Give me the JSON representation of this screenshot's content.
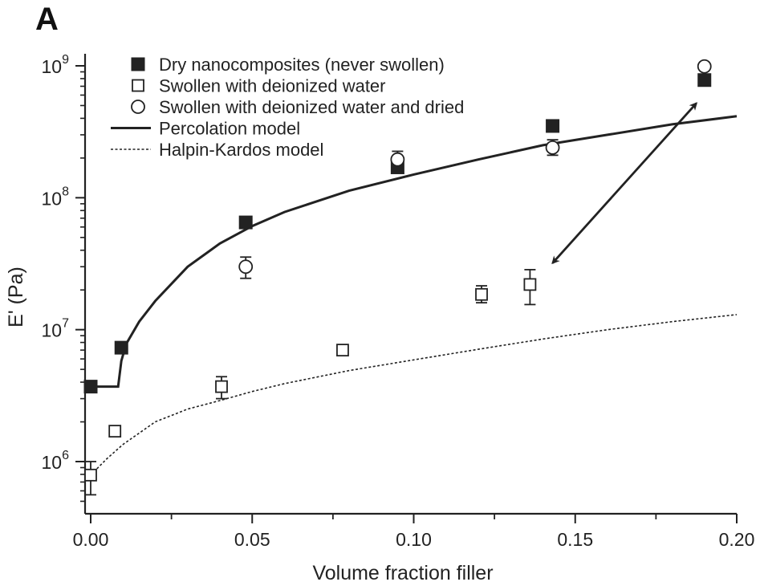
{
  "panel_label": "A",
  "chart_data": {
    "type": "scatter",
    "xlabel": "Volume fraction filler",
    "ylabel": "E' (Pa)",
    "xlim": [
      -0.002,
      0.2
    ],
    "ylim_log10": [
      5.6,
      9.1
    ],
    "yscale": "log",
    "x_ticks": [
      {
        "value": 0.0,
        "label": "0.00"
      },
      {
        "value": 0.05,
        "label": "0.05"
      },
      {
        "value": 0.1,
        "label": "0.10"
      },
      {
        "value": 0.15,
        "label": "0.15"
      },
      {
        "value": 0.2,
        "label": "0.20"
      }
    ],
    "x_minor_ticks": [
      0.025,
      0.075,
      0.125,
      0.175
    ],
    "y_ticks": [
      {
        "exp": 6,
        "base": "10",
        "sup": "6"
      },
      {
        "exp": 7,
        "base": "10",
        "sup": "7"
      },
      {
        "exp": 8,
        "base": "10",
        "sup": "8"
      },
      {
        "exp": 9,
        "base": "10",
        "sup": "9"
      }
    ],
    "legend_position": "top-left",
    "series": [
      {
        "name": "Dry nanocomposites (never swollen)",
        "marker": "filled-square",
        "points": [
          {
            "x": 0.0,
            "y": 3700000
          },
          {
            "x": 0.0095,
            "y": 7300000
          },
          {
            "x": 0.048,
            "y": 65000000
          },
          {
            "x": 0.095,
            "y": 170000000
          },
          {
            "x": 0.143,
            "y": 350000000
          },
          {
            "x": 0.19,
            "y": 780000000
          }
        ]
      },
      {
        "name": "Swollen with deionized water",
        "marker": "open-square",
        "points": [
          {
            "x": 0.0,
            "y": 790000,
            "err_lo": 560000,
            "err_hi": 1000000
          },
          {
            "x": 0.0075,
            "y": 1700000
          },
          {
            "x": 0.0405,
            "y": 3700000,
            "err_lo": 3000000,
            "err_hi": 4400000
          },
          {
            "x": 0.078,
            "y": 7000000
          },
          {
            "x": 0.121,
            "y": 18500000,
            "err_lo": 16000000,
            "err_hi": 21500000
          },
          {
            "x": 0.136,
            "y": 22000000,
            "err_lo": 15500000,
            "err_hi": 28500000
          }
        ]
      },
      {
        "name": "Swollen with deionized water and dried",
        "marker": "open-circle",
        "points": [
          {
            "x": 0.048,
            "y": 30000000,
            "err_lo": 24500000,
            "err_hi": 35500000
          },
          {
            "x": 0.095,
            "y": 195000000,
            "err_lo": 165000000,
            "err_hi": 225000000
          },
          {
            "x": 0.143,
            "y": 240000000,
            "err_lo": 210000000,
            "err_hi": 275000000
          },
          {
            "x": 0.19,
            "y": 990000000
          }
        ]
      },
      {
        "name": "Percolation model",
        "line": "solid",
        "points": [
          {
            "x": -0.002,
            "y": 3700000
          },
          {
            "x": 0.0085,
            "y": 3700000
          },
          {
            "x": 0.0095,
            "y": 5800000
          },
          {
            "x": 0.011,
            "y": 7800000
          },
          {
            "x": 0.015,
            "y": 11500000
          },
          {
            "x": 0.02,
            "y": 16500000
          },
          {
            "x": 0.03,
            "y": 30000000
          },
          {
            "x": 0.04,
            "y": 45000000
          },
          {
            "x": 0.05,
            "y": 61000000
          },
          {
            "x": 0.06,
            "y": 78000000
          },
          {
            "x": 0.08,
            "y": 113000000
          },
          {
            "x": 0.1,
            "y": 150000000
          },
          {
            "x": 0.12,
            "y": 195000000
          },
          {
            "x": 0.14,
            "y": 250000000
          },
          {
            "x": 0.16,
            "y": 300000000
          },
          {
            "x": 0.18,
            "y": 360000000
          },
          {
            "x": 0.2,
            "y": 415000000
          }
        ]
      },
      {
        "name": "Halpin-Kardos model",
        "line": "dashed",
        "points": [
          {
            "x": 0.0,
            "y": 790000
          },
          {
            "x": 0.005,
            "y": 1050000
          },
          {
            "x": 0.01,
            "y": 1350000
          },
          {
            "x": 0.02,
            "y": 2000000
          },
          {
            "x": 0.03,
            "y": 2500000
          },
          {
            "x": 0.04,
            "y": 2900000
          },
          {
            "x": 0.05,
            "y": 3400000
          },
          {
            "x": 0.06,
            "y": 3900000
          },
          {
            "x": 0.08,
            "y": 4900000
          },
          {
            "x": 0.1,
            "y": 5900000
          },
          {
            "x": 0.12,
            "y": 7100000
          },
          {
            "x": 0.14,
            "y": 8500000
          },
          {
            "x": 0.16,
            "y": 10000000
          },
          {
            "x": 0.18,
            "y": 11500000
          },
          {
            "x": 0.2,
            "y": 13000000
          }
        ]
      }
    ],
    "annotations": [
      {
        "type": "double-arrow",
        "from": {
          "x": 0.143,
          "y": 32000000
        },
        "to": {
          "x": 0.1875,
          "y": 520000000
        }
      }
    ]
  }
}
